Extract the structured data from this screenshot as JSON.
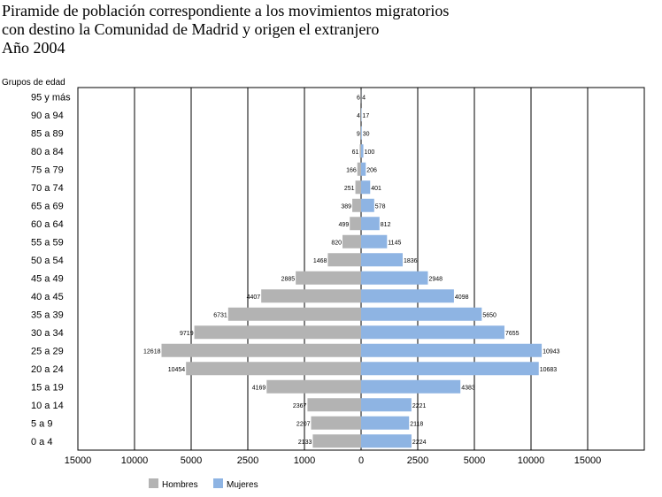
{
  "title_lines": [
    "Piramide de población correspondiente a los movimientos migratorios",
    "con destino la Comunidad de Madrid y origen el extranjero",
    "Año 2004"
  ],
  "chart_data": {
    "type": "bar",
    "orientation": "horizontal",
    "subtype": "population-pyramid",
    "ylabel": "Grupos de edad",
    "categories": [
      "95 y más",
      "90 a 94",
      "85 a 89",
      "80 a 84",
      "75 a 79",
      "70 a 74",
      "65 a 69",
      "60 a 64",
      "55 a 59",
      "50 a 54",
      "45 a 49",
      "40 a 45",
      "35 a 39",
      "30 a 34",
      "25 a 29",
      "20 a 24",
      "15 a 19",
      "10 a 14",
      "5 a 9",
      "0 a 4"
    ],
    "x_tick_labels": [
      "15000",
      "10000",
      "5000",
      "2500",
      "1000",
      "0",
      "2500",
      "5000",
      "10000",
      "15000"
    ],
    "series": [
      {
        "name": "Hombres",
        "color": "#b3b3b3",
        "values": [
          6,
          4,
          9,
          61,
          166,
          251,
          389,
          499,
          820,
          1468,
          2885,
          4407,
          6731,
          9719,
          12618,
          10454,
          4169,
          2367,
          2207,
          2133
        ],
        "labels": [
          "6",
          "4",
          "9",
          "61",
          "166",
          "251",
          "389",
          "499",
          "820",
          "1468",
          "2885",
          "4407",
          "6731",
          "9719",
          "12618",
          "10454",
          "4169",
          "2367",
          "2207",
          "2133"
        ]
      },
      {
        "name": "Mujeres",
        "color": "#8eb4e3",
        "values": [
          4,
          17,
          30,
          100,
          206,
          401,
          578,
          812,
          1145,
          1836,
          2948,
          4098,
          5650,
          7655,
          10943,
          10683,
          4383,
          2221,
          2118,
          2224
        ],
        "labels": [
          "4",
          "17",
          "30",
          "100",
          "206",
          "401",
          "578",
          "812",
          "1145",
          "1836",
          "2948",
          "4098",
          "5650",
          "7655",
          "10943",
          "10683",
          "4383",
          "2221",
          "2118",
          "2224"
        ]
      }
    ],
    "grid": true,
    "legend_position": "bottom"
  }
}
